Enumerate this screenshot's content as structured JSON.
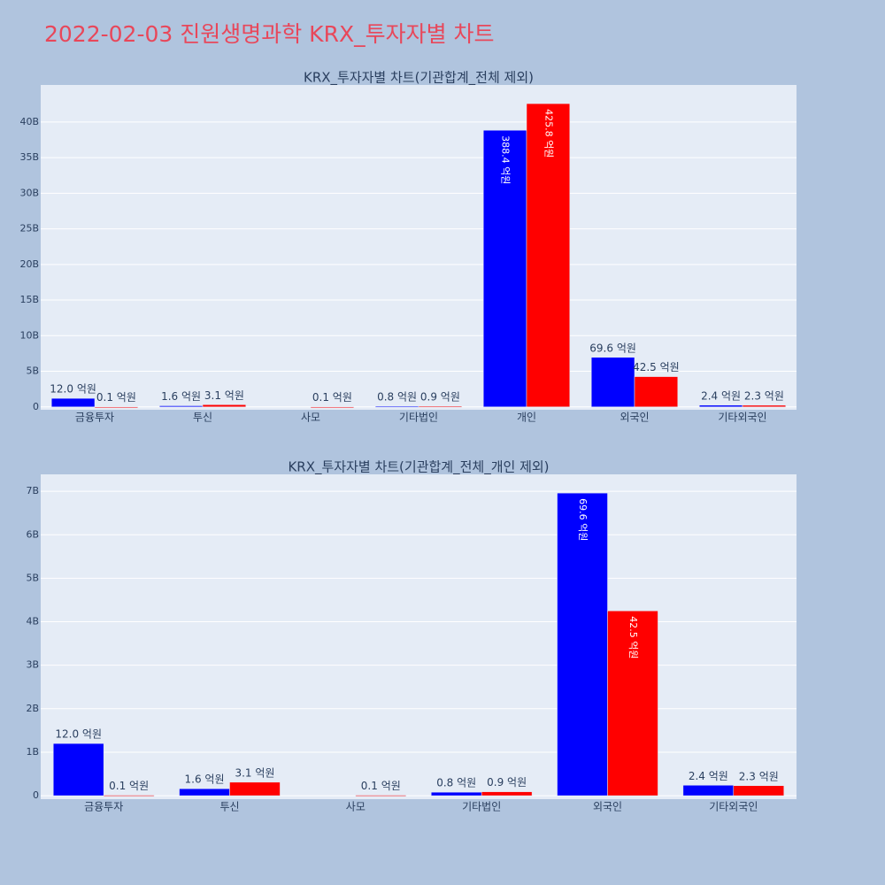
{
  "title": "2022-02-03 진원생명과학 KRX_투자자별 차트",
  "chart_data": [
    {
      "type": "bar",
      "title": "KRX_투자자별 차트(기관합계_전체 제외)",
      "categories": [
        "금융투자",
        "투신",
        "사모",
        "기타법인",
        "개인",
        "외국인",
        "기타외국인"
      ],
      "series": [
        {
          "color": "#0000ff",
          "values": [
            1200000000,
            160000000,
            null,
            80000000,
            38840000000,
            6960000000,
            240000000
          ],
          "value_labels": [
            "12.0 억원",
            "1.6 억원",
            null,
            "0.8 억원",
            "388.4 억원",
            "69.6 억원",
            "2.4 억원"
          ]
        },
        {
          "color": "#ff0000",
          "values": [
            10000000,
            310000000,
            10000000,
            90000000,
            42580000000,
            4250000000,
            230000000
          ],
          "value_labels": [
            "0.1 억원",
            "3.1 억원",
            "0.1 억원",
            "0.9 억원",
            "425.8 억원",
            "42.5 억원",
            "2.3 억원"
          ]
        }
      ],
      "ylim": [
        -400000000,
        45200000000
      ],
      "yticks": [
        0,
        {
          "value": 5000000000,
          "label": "5B"
        },
        {
          "value": 10000000000,
          "label": "10B"
        },
        {
          "value": 15000000000,
          "label": "15B"
        },
        {
          "value": 20000000000,
          "label": "20B"
        },
        {
          "value": 25000000000,
          "label": "25B"
        },
        {
          "value": 30000000000,
          "label": "30B"
        },
        {
          "value": 35000000000,
          "label": "35B"
        },
        {
          "value": 40000000000,
          "label": "40B"
        }
      ],
      "grid": true
    },
    {
      "type": "bar",
      "title": "KRX_투자자별 차트(기관합계_전체_개인 제외)",
      "categories": [
        "금융투자",
        "투신",
        "사모",
        "기타법인",
        "외국인",
        "기타외국인"
      ],
      "series": [
        {
          "color": "#0000ff",
          "values": [
            1200000000,
            160000000,
            null,
            80000000,
            6960000000,
            240000000
          ],
          "value_labels": [
            "12.0 억원",
            "1.6 억원",
            null,
            "0.8 억원",
            "69.6 억원",
            "2.4 억원"
          ]
        },
        {
          "color": "#ff0000",
          "values": [
            10000000,
            310000000,
            10000000,
            90000000,
            4250000000,
            230000000
          ],
          "value_labels": [
            "0.1 억원",
            "3.1 억원",
            "0.1 억원",
            "0.9 억원",
            "42.5 억원",
            "2.3 억원"
          ]
        }
      ],
      "ylim": [
        -80000000,
        7390000000
      ],
      "yticks": [
        0,
        {
          "value": 1000000000,
          "label": "1B"
        },
        {
          "value": 2000000000,
          "label": "2B"
        },
        {
          "value": 3000000000,
          "label": "3B"
        },
        {
          "value": 4000000000,
          "label": "4B"
        },
        {
          "value": 5000000000,
          "label": "5B"
        },
        {
          "value": 6000000000,
          "label": "6B"
        },
        {
          "value": 7000000000,
          "label": "7B"
        }
      ],
      "grid": true
    }
  ]
}
